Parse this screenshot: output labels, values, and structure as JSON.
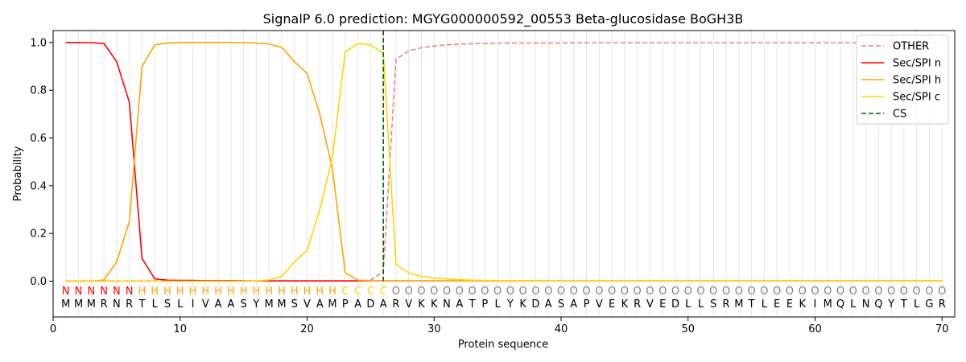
{
  "chart_data": {
    "type": "line",
    "title": "SignalP 6.0 prediction: MGYG000000592_00553 Beta-glucosidase BoGH3B",
    "xlabel": "Protein sequence",
    "ylabel": "Probability",
    "xlim": [
      0,
      71
    ],
    "ylim": [
      -0.15,
      1.05
    ],
    "xticks": [
      0,
      10,
      20,
      30,
      40,
      50,
      60,
      70
    ],
    "yticks": [
      0.0,
      0.2,
      0.4,
      0.6,
      0.8,
      1.0
    ],
    "grid": "vertical lines at each residue",
    "legend_position": "top-right",
    "sequence": [
      "M",
      "M",
      "M",
      "R",
      "N",
      "R",
      "T",
      "L",
      "S",
      "L",
      "I",
      "V",
      "A",
      "A",
      "S",
      "Y",
      "M",
      "M",
      "S",
      "V",
      "A",
      "M",
      "P",
      "A",
      "D",
      "A",
      "R",
      "V",
      "K",
      "K",
      "N",
      "A",
      "T",
      "P",
      "L",
      "Y",
      "K",
      "D",
      "A",
      "S",
      "A",
      "P",
      "V",
      "E",
      "K",
      "R",
      "V",
      "E",
      "D",
      "L",
      "L",
      "S",
      "R",
      "M",
      "T",
      "L",
      "E",
      "E",
      "K",
      "I",
      "M",
      "Q",
      "L",
      "N",
      "Q",
      "Y",
      "T",
      "L",
      "G",
      "R"
    ],
    "region_labels": [
      "N",
      "N",
      "N",
      "N",
      "N",
      "N",
      "H",
      "H",
      "H",
      "H",
      "H",
      "H",
      "H",
      "H",
      "H",
      "H",
      "H",
      "H",
      "H",
      "H",
      "H",
      "H",
      "C",
      "C",
      "C",
      "C",
      "O",
      "O",
      "O",
      "O",
      "O",
      "O",
      "O",
      "O",
      "O",
      "O",
      "O",
      "O",
      "O",
      "O",
      "O",
      "O",
      "O",
      "O",
      "O",
      "O",
      "O",
      "O",
      "O",
      "O",
      "O",
      "O",
      "O",
      "O",
      "O",
      "O",
      "O",
      "O",
      "O",
      "O",
      "O",
      "O",
      "O",
      "O",
      "O",
      "O",
      "O",
      "O",
      "O",
      "O"
    ],
    "region_colors": {
      "N": "#ff0000",
      "H": "#ffa500",
      "C": "#ffd700",
      "O": "#808080"
    },
    "cleavage_site": 26,
    "series": [
      {
        "name": "OTHER",
        "color": "#f08080",
        "dash": true,
        "values": [
          0.001,
          0.001,
          0.001,
          0.001,
          0.001,
          0.001,
          0.001,
          0.001,
          0.001,
          0.001,
          0.001,
          0.001,
          0.001,
          0.001,
          0.001,
          0.001,
          0.001,
          0.001,
          0.001,
          0.001,
          0.001,
          0.001,
          0.001,
          0.002,
          0.004,
          0.04,
          0.93,
          0.965,
          0.978,
          0.985,
          0.99,
          0.993,
          0.995,
          0.996,
          0.997,
          0.998,
          0.998,
          0.998,
          0.998,
          0.998,
          0.999,
          0.999,
          0.999,
          0.999,
          0.999,
          0.999,
          0.999,
          0.999,
          0.999,
          0.999,
          0.999,
          0.999,
          0.999,
          0.999,
          0.999,
          0.999,
          0.999,
          0.999,
          0.999,
          0.999,
          0.999,
          0.999,
          0.999,
          0.999,
          0.999,
          0.999,
          0.999,
          0.999,
          0.999,
          0.999
        ]
      },
      {
        "name": "Sec/SPI n",
        "color": "#ff0000",
        "dash": false,
        "values": [
          1.0,
          1.0,
          0.999,
          0.996,
          0.92,
          0.75,
          0.095,
          0.01,
          0.004,
          0.003,
          0.003,
          0.002,
          0.002,
          0.002,
          0.001,
          0.001,
          0.001,
          0.001,
          0.001,
          0.001,
          0.001,
          0.001,
          0.001,
          0.001,
          0.001,
          0.001,
          0.001,
          0.001,
          0.001,
          0.001,
          0.001,
          0.001,
          0.001,
          0.001,
          0.001,
          0.001,
          0.001,
          0.001,
          0.001,
          0.001,
          0.001,
          0.001,
          0.001,
          0.001,
          0.001,
          0.001,
          0.001,
          0.001,
          0.001,
          0.001,
          0.001,
          0.001,
          0.001,
          0.001,
          0.001,
          0.001,
          0.001,
          0.001,
          0.001,
          0.001,
          0.001,
          0.001,
          0.001,
          0.001,
          0.001,
          0.001,
          0.001,
          0.001,
          0.001,
          0.001
        ]
      },
      {
        "name": "Sec/SPI h",
        "color": "#ffa500",
        "dash": false,
        "values": [
          0.0,
          0.0,
          0.0,
          0.005,
          0.08,
          0.25,
          0.9,
          0.99,
          0.998,
          1.0,
          1.0,
          1.0,
          1.0,
          1.0,
          0.999,
          0.998,
          0.994,
          0.98,
          0.92,
          0.87,
          0.7,
          0.47,
          0.035,
          0.004,
          0.001,
          0.001,
          0.001,
          0.001,
          0.001,
          0.001,
          0.001,
          0.001,
          0.001,
          0.001,
          0.001,
          0.001,
          0.001,
          0.001,
          0.001,
          0.001,
          0.001,
          0.001,
          0.001,
          0.001,
          0.001,
          0.001,
          0.001,
          0.001,
          0.001,
          0.001,
          0.001,
          0.001,
          0.001,
          0.001,
          0.001,
          0.001,
          0.001,
          0.001,
          0.001,
          0.001,
          0.001,
          0.001,
          0.001,
          0.001,
          0.001,
          0.001,
          0.001,
          0.001,
          0.001,
          0.001
        ]
      },
      {
        "name": "Sec/SPI c",
        "color": "#ffd700",
        "dash": false,
        "values": [
          0.0,
          0.0,
          0.0,
          0.0,
          0.0,
          0.0,
          0.0,
          0.0,
          0.0,
          0.0,
          0.0,
          0.0,
          0.0,
          0.0,
          0.0,
          0.001,
          0.005,
          0.02,
          0.08,
          0.13,
          0.3,
          0.52,
          0.96,
          0.995,
          0.99,
          0.955,
          0.07,
          0.035,
          0.02,
          0.013,
          0.009,
          0.006,
          0.004,
          0.003,
          0.002,
          0.002,
          0.002,
          0.001,
          0.001,
          0.001,
          0.001,
          0.001,
          0.001,
          0.001,
          0.001,
          0.001,
          0.001,
          0.001,
          0.001,
          0.001,
          0.001,
          0.001,
          0.001,
          0.001,
          0.001,
          0.001,
          0.001,
          0.001,
          0.001,
          0.001,
          0.001,
          0.001,
          0.001,
          0.001,
          0.001,
          0.001,
          0.001,
          0.001,
          0.001,
          0.001
        ]
      }
    ],
    "cs_series": {
      "name": "CS",
      "color": "#006400",
      "dash": true
    }
  }
}
